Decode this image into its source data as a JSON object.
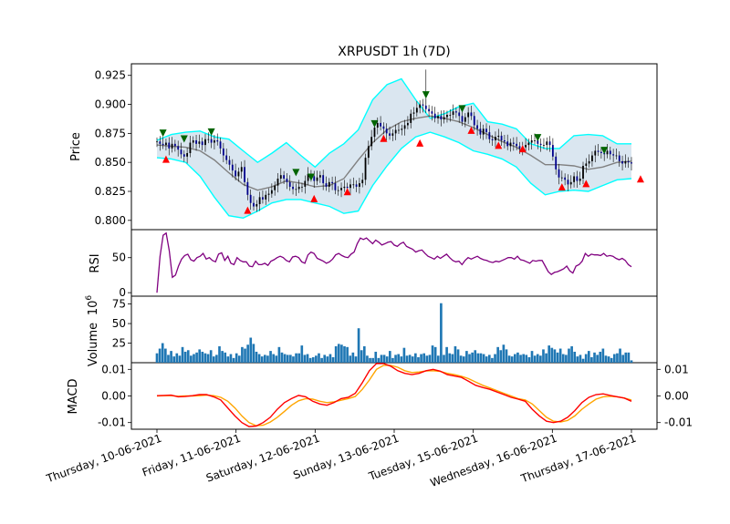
{
  "chart_data": {
    "title": "XRPUSDT 1h (7D)",
    "type": "candlestick",
    "x_tick_labels": [
      "Thursday, 10-06-2021",
      "Friday, 11-06-2021",
      "Saturday, 12-06-2021",
      "Sunday, 13-06-2021",
      "Tuesday, 15-06-2021",
      "Wednesday, 16-06-2021",
      "Thursday, 17-06-2021"
    ],
    "panels": {
      "price": {
        "ylabel": "Price",
        "yticks": [
          "0.800",
          "0.825",
          "0.850",
          "0.875",
          "0.900",
          "0.925"
        ],
        "ylim": [
          0.792,
          0.935
        ],
        "close": [
          0.868,
          0.866,
          0.865,
          0.867,
          0.862,
          0.866,
          0.864,
          0.861,
          0.857,
          0.855,
          0.858,
          0.867,
          0.869,
          0.866,
          0.868,
          0.865,
          0.87,
          0.87,
          0.867,
          0.869,
          0.868,
          0.862,
          0.856,
          0.852,
          0.848,
          0.843,
          0.838,
          0.842,
          0.846,
          0.833,
          0.822,
          0.815,
          0.812,
          0.814,
          0.82,
          0.818,
          0.822,
          0.823,
          0.826,
          0.83,
          0.836,
          0.839,
          0.836,
          0.833,
          0.829,
          0.827,
          0.827,
          0.829,
          0.829,
          0.834,
          0.84,
          0.838,
          0.834,
          0.837,
          0.839,
          0.832,
          0.829,
          0.833,
          0.832,
          0.826,
          0.826,
          0.828,
          0.829,
          0.828,
          0.831,
          0.831,
          0.829,
          0.832,
          0.835,
          0.854,
          0.864,
          0.872,
          0.88,
          0.884,
          0.881,
          0.879,
          0.875,
          0.873,
          0.875,
          0.878,
          0.878,
          0.879,
          0.882,
          0.884,
          0.892,
          0.893,
          0.897,
          0.9,
          0.899,
          0.896,
          0.894,
          0.892,
          0.888,
          0.89,
          0.887,
          0.889,
          0.891,
          0.891,
          0.894,
          0.893,
          0.89,
          0.885,
          0.889,
          0.893,
          0.89,
          0.882,
          0.879,
          0.874,
          0.879,
          0.876,
          0.87,
          0.869,
          0.872,
          0.873,
          0.869,
          0.868,
          0.864,
          0.867,
          0.866,
          0.864,
          0.862,
          0.863,
          0.865,
          0.867,
          0.869,
          0.869,
          0.866,
          0.865,
          0.865,
          0.868,
          0.865,
          0.855,
          0.844,
          0.837,
          0.837,
          0.835,
          0.831,
          0.833,
          0.838,
          0.834,
          0.836,
          0.847,
          0.849,
          0.851,
          0.856,
          0.86,
          0.859,
          0.858,
          0.857,
          0.86,
          0.857,
          0.856,
          0.856,
          0.851,
          0.849,
          0.851,
          0.85,
          0.849
        ],
        "bollinger_upper": [
          0.869,
          0.874,
          0.876,
          0.877,
          0.872,
          0.87,
          0.86,
          0.85,
          0.858,
          0.867,
          0.856,
          0.846,
          0.858,
          0.866,
          0.878,
          0.904,
          0.917,
          0.922,
          0.904,
          0.888,
          0.892,
          0.898,
          0.901,
          0.885,
          0.883,
          0.879,
          0.866,
          0.862,
          0.862,
          0.873,
          0.874,
          0.873,
          0.866,
          0.866
        ],
        "bollinger_middle": [
          0.865,
          0.864,
          0.863,
          0.86,
          0.852,
          0.841,
          0.831,
          0.826,
          0.829,
          0.834,
          0.832,
          0.829,
          0.83,
          0.836,
          0.852,
          0.867,
          0.878,
          0.885,
          0.888,
          0.89,
          0.888,
          0.885,
          0.88,
          0.874,
          0.868,
          0.863,
          0.856,
          0.848,
          0.848,
          0.847,
          0.844,
          0.846,
          0.85,
          0.851
        ],
        "bollinger_lower": [
          0.854,
          0.853,
          0.85,
          0.838,
          0.82,
          0.804,
          0.802,
          0.808,
          0.815,
          0.818,
          0.818,
          0.815,
          0.812,
          0.806,
          0.808,
          0.83,
          0.847,
          0.862,
          0.872,
          0.876,
          0.872,
          0.867,
          0.86,
          0.857,
          0.853,
          0.846,
          0.832,
          0.822,
          0.825,
          0.826,
          0.825,
          0.83,
          0.835,
          0.836
        ],
        "buy_signals": [
          [
            3,
            0.852
          ],
          [
            30,
            0.808
          ],
          [
            52,
            0.818
          ],
          [
            63,
            0.824
          ],
          [
            75,
            0.87
          ],
          [
            87,
            0.866
          ],
          [
            104,
            0.877
          ],
          [
            113,
            0.864
          ],
          [
            121,
            0.861
          ],
          [
            134,
            0.828
          ],
          [
            142,
            0.831
          ],
          [
            160,
            0.835
          ]
        ],
        "sell_signals": [
          [
            2,
            0.876
          ],
          [
            9,
            0.871
          ],
          [
            18,
            0.877
          ],
          [
            46,
            0.842
          ],
          [
            51,
            0.838
          ],
          [
            72,
            0.884
          ],
          [
            89,
            0.909
          ],
          [
            101,
            0.897
          ],
          [
            126,
            0.872
          ],
          [
            148,
            0.861
          ]
        ]
      },
      "rsi": {
        "ylabel": "RSI",
        "yticks": [
          "0",
          "50"
        ],
        "ylim": [
          -5,
          90
        ],
        "values": [
          0,
          52,
          82,
          85,
          60,
          22,
          25,
          38,
          48,
          53,
          55,
          47,
          45,
          50,
          52,
          56,
          48,
          50,
          46,
          44,
          55,
          57,
          46,
          52,
          42,
          40,
          50,
          46,
          44,
          44,
          38,
          37,
          45,
          40,
          40,
          42,
          39,
          45,
          47,
          50,
          52,
          50,
          46,
          44,
          51,
          52,
          50,
          44,
          42,
          54,
          58,
          56,
          49,
          47,
          45,
          42,
          44,
          48,
          54,
          56,
          53,
          51,
          50,
          55,
          58,
          70,
          78,
          76,
          78,
          74,
          70,
          75,
          72,
          68,
          70,
          72,
          73,
          68,
          66,
          70,
          72,
          66,
          64,
          62,
          58,
          60,
          61,
          56,
          52,
          50,
          48,
          52,
          49,
          52,
          55,
          50,
          46,
          44,
          45,
          40,
          46,
          50,
          48,
          50,
          52,
          49,
          47,
          46,
          44,
          43,
          45,
          44,
          46,
          48,
          50,
          50,
          48,
          52,
          47,
          46,
          44,
          42,
          46,
          45,
          46,
          46,
          38,
          30,
          26,
          29,
          30,
          32,
          34,
          38,
          31,
          28,
          38,
          40,
          45,
          56,
          52,
          55,
          54,
          54,
          53,
          56,
          52,
          53,
          52,
          49,
          47,
          49,
          46,
          40,
          37
        ]
      },
      "volume": {
        "ylabel": "Volume",
        "scale_label": "10^6",
        "yticks": [
          "25",
          "50",
          "75"
        ],
        "ylim": [
          0,
          85
        ],
        "values": [
          12,
          18,
          25,
          18,
          10,
          15,
          8,
          12,
          9,
          20,
          14,
          16,
          9,
          11,
          13,
          17,
          14,
          12,
          11,
          16,
          8,
          10,
          21,
          15,
          13,
          8,
          11,
          6,
          12,
          9,
          20,
          18,
          23,
          32,
          24,
          14,
          11,
          8,
          10,
          9,
          15,
          11,
          9,
          20,
          13,
          11,
          10,
          10,
          8,
          12,
          12,
          22,
          10,
          11,
          6,
          7,
          9,
          12,
          6,
          10,
          8,
          11,
          7,
          21,
          24,
          23,
          21,
          20,
          9,
          13,
          8,
          44,
          16,
          21,
          9,
          6,
          6,
          14,
          6,
          10,
          10,
          8,
          15,
          6,
          10,
          11,
          8,
          19,
          9,
          10,
          8,
          12,
          7,
          11,
          12,
          9,
          10,
          22,
          20,
          9,
          76,
          10,
          20,
          12,
          11,
          21,
          17,
          9,
          8,
          15,
          11,
          13,
          16,
          12,
          12,
          11,
          8,
          10,
          6,
          11,
          20,
          16,
          23,
          17,
          9,
          8,
          11,
          13,
          10,
          11,
          10,
          7,
          15,
          9,
          11,
          9,
          17,
          12,
          22,
          19,
          17,
          13,
          18,
          11,
          10,
          18,
          21,
          14,
          8,
          10,
          5,
          11,
          15,
          7,
          13,
          10,
          14,
          18,
          9,
          8,
          6,
          11,
          12,
          18,
          10,
          13,
          13,
          3
        ]
      },
      "macd": {
        "ylabel": "MACD",
        "yticks": [
          "-0.01",
          "0.00",
          "0.01"
        ],
        "ylim": [
          -0.0125,
          0.0125
        ],
        "macd_color": "#ff0000",
        "signal_color": "#ffa500",
        "macd": [
          0.0001,
          0.0002,
          0.0003,
          -0.0003,
          -0.0002,
          0.0001,
          0.0005,
          0.0005,
          -0.0003,
          -0.0015,
          -0.0045,
          -0.0075,
          -0.01,
          -0.0115,
          -0.0113,
          -0.01,
          -0.008,
          -0.005,
          -0.0025,
          -0.001,
          0.0002,
          -0.0003,
          -0.002,
          -0.003,
          -0.0035,
          -0.0025,
          -0.001,
          -0.0005,
          0.001,
          0.005,
          0.0095,
          0.0122,
          0.0122,
          0.0112,
          0.0095,
          0.0085,
          0.008,
          0.0085,
          0.0095,
          0.01,
          0.0093,
          0.008,
          0.0075,
          0.007,
          0.0055,
          0.004,
          0.0032,
          0.0025,
          0.0015,
          0.0005,
          -0.0005,
          -0.0012,
          -0.002,
          -0.005,
          -0.0075,
          -0.0095,
          -0.01,
          -0.0095,
          -0.008,
          -0.0055,
          -0.0025,
          -0.0005,
          0.0005,
          0.0008,
          0.0002,
          -0.0003,
          -0.0008,
          -0.002
        ],
        "signal": [
          0.0,
          0.0001,
          0.0001,
          -0.0001,
          0.0,
          0.0,
          0.0001,
          0.0003,
          0.0001,
          -0.0005,
          -0.002,
          -0.0045,
          -0.0075,
          -0.01,
          -0.0112,
          -0.011,
          -0.0098,
          -0.008,
          -0.0058,
          -0.0035,
          -0.0018,
          -0.001,
          -0.0012,
          -0.002,
          -0.0025,
          -0.0022,
          -0.0016,
          -0.001,
          -0.0002,
          0.0025,
          0.006,
          0.01,
          0.0115,
          0.0115,
          0.0108,
          0.0095,
          0.0088,
          0.009,
          0.0094,
          0.0095,
          0.0092,
          0.0085,
          0.008,
          0.0074,
          0.0065,
          0.0052,
          0.004,
          0.003,
          0.002,
          0.001,
          0.0,
          -0.001,
          -0.0015,
          -0.003,
          -0.0055,
          -0.008,
          -0.0095,
          -0.0098,
          -0.0092,
          -0.0075,
          -0.005,
          -0.003,
          -0.0012,
          -0.0003,
          -0.0001,
          -0.0003,
          -0.0008,
          -0.0015
        ]
      }
    },
    "colors": {
      "bollinger_band": "#00ffff",
      "bollinger_fill": "#dae6f0",
      "bollinger_middle": "#808080",
      "rsi": "#800080",
      "volume": "#1f77b4",
      "candle_up": "#000000",
      "candle_down": "#00008b",
      "buy_marker": "#ff0000",
      "sell_marker": "#006400"
    }
  }
}
